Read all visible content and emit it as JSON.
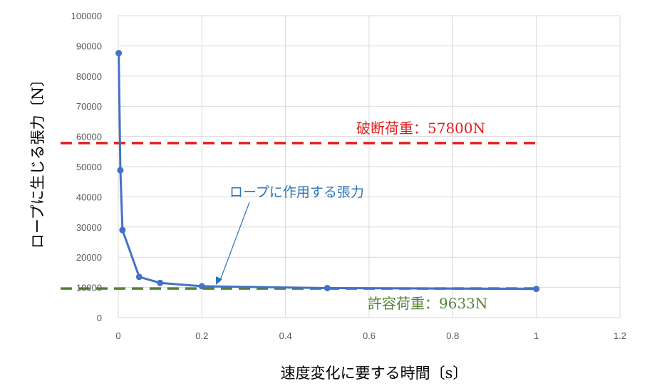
{
  "chart_data": {
    "type": "line",
    "title": "",
    "xlabel": "速度変化に要する時間〔s〕",
    "ylabel": "ロープに生じる張力〔N〕",
    "xlim": [
      0,
      1.2
    ],
    "ylim": [
      0,
      100000
    ],
    "x_ticks": [
      "0",
      "0.2",
      "0.4",
      "0.6",
      "0.8",
      "1",
      "1.2"
    ],
    "y_ticks": [
      "0",
      "10000",
      "20000",
      "30000",
      "40000",
      "50000",
      "60000",
      "70000",
      "80000",
      "90000",
      "100000"
    ],
    "grid": true,
    "series": [
      {
        "color": "#4472c4",
        "points": [
          {
            "x": 0.001,
            "y": 87600
          },
          {
            "x": 0.005,
            "y": 48800
          },
          {
            "x": 0.01,
            "y": 29000
          },
          {
            "x": 0.05,
            "y": 13500
          },
          {
            "x": 0.1,
            "y": 11500
          },
          {
            "x": 0.2,
            "y": 10400
          },
          {
            "x": 0.5,
            "y": 9800
          },
          {
            "x": 1.0,
            "y": 9500
          }
        ]
      }
    ],
    "reference_lines": [
      {
        "y": 57800,
        "color": "#e02020",
        "label": "破断荷重：57800N"
      },
      {
        "y": 9633,
        "color": "#548235",
        "label": "許容荷重：9633N"
      }
    ],
    "annotations": [
      {
        "text": "ロープに作用する張力",
        "color": "#2e75b6"
      }
    ]
  }
}
